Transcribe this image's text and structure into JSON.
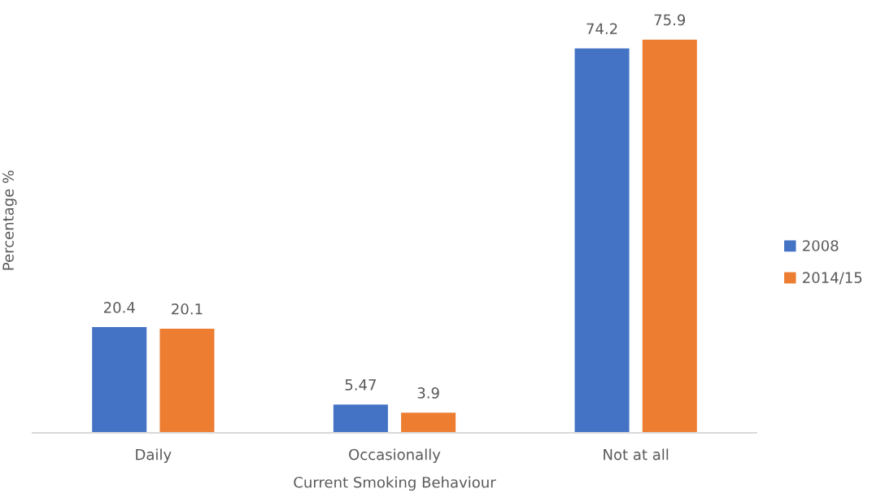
{
  "chart_data": {
    "type": "bar",
    "xlabel": "Current Smoking Behaviour",
    "ylabel": "Percentage %",
    "categories": [
      "Daily",
      "Occasionally",
      "Not at all"
    ],
    "series": [
      {
        "name": "2008",
        "color": "#4472c4",
        "values": [
          20.4,
          5.47,
          74.2
        ]
      },
      {
        "name": "2014/15",
        "color": "#ed7d31",
        "values": [
          20.1,
          3.9,
          75.9
        ]
      }
    ],
    "data_labels": true,
    "tick_labels": "x",
    "grid": false,
    "legend": "right"
  }
}
